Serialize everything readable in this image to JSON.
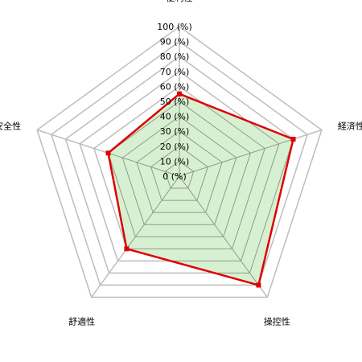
{
  "chart_data": {
    "type": "radar",
    "axes": [
      "便利性",
      "経済性",
      "操控性",
      "舒適性",
      "安全性"
    ],
    "values": [
      55,
      80,
      90,
      60,
      50
    ],
    "rlim": [
      0,
      100
    ],
    "ticks": [
      0,
      10,
      20,
      30,
      40,
      50,
      60,
      70,
      80,
      90,
      100
    ],
    "tick_labels": [
      "0 (%)",
      "10 (%)",
      "20 (%)",
      "30 (%)",
      "40 (%)",
      "50 (%)",
      "60 (%)",
      "70 (%)",
      "80 (%)",
      "90 (%)",
      "100 (%)"
    ],
    "grid": true,
    "legend": "none",
    "colors": {
      "line": "#e00000",
      "fill": "#d8f0d2",
      "grid": "#bdbdbd",
      "inner_grid": "#8c9a8c"
    }
  }
}
